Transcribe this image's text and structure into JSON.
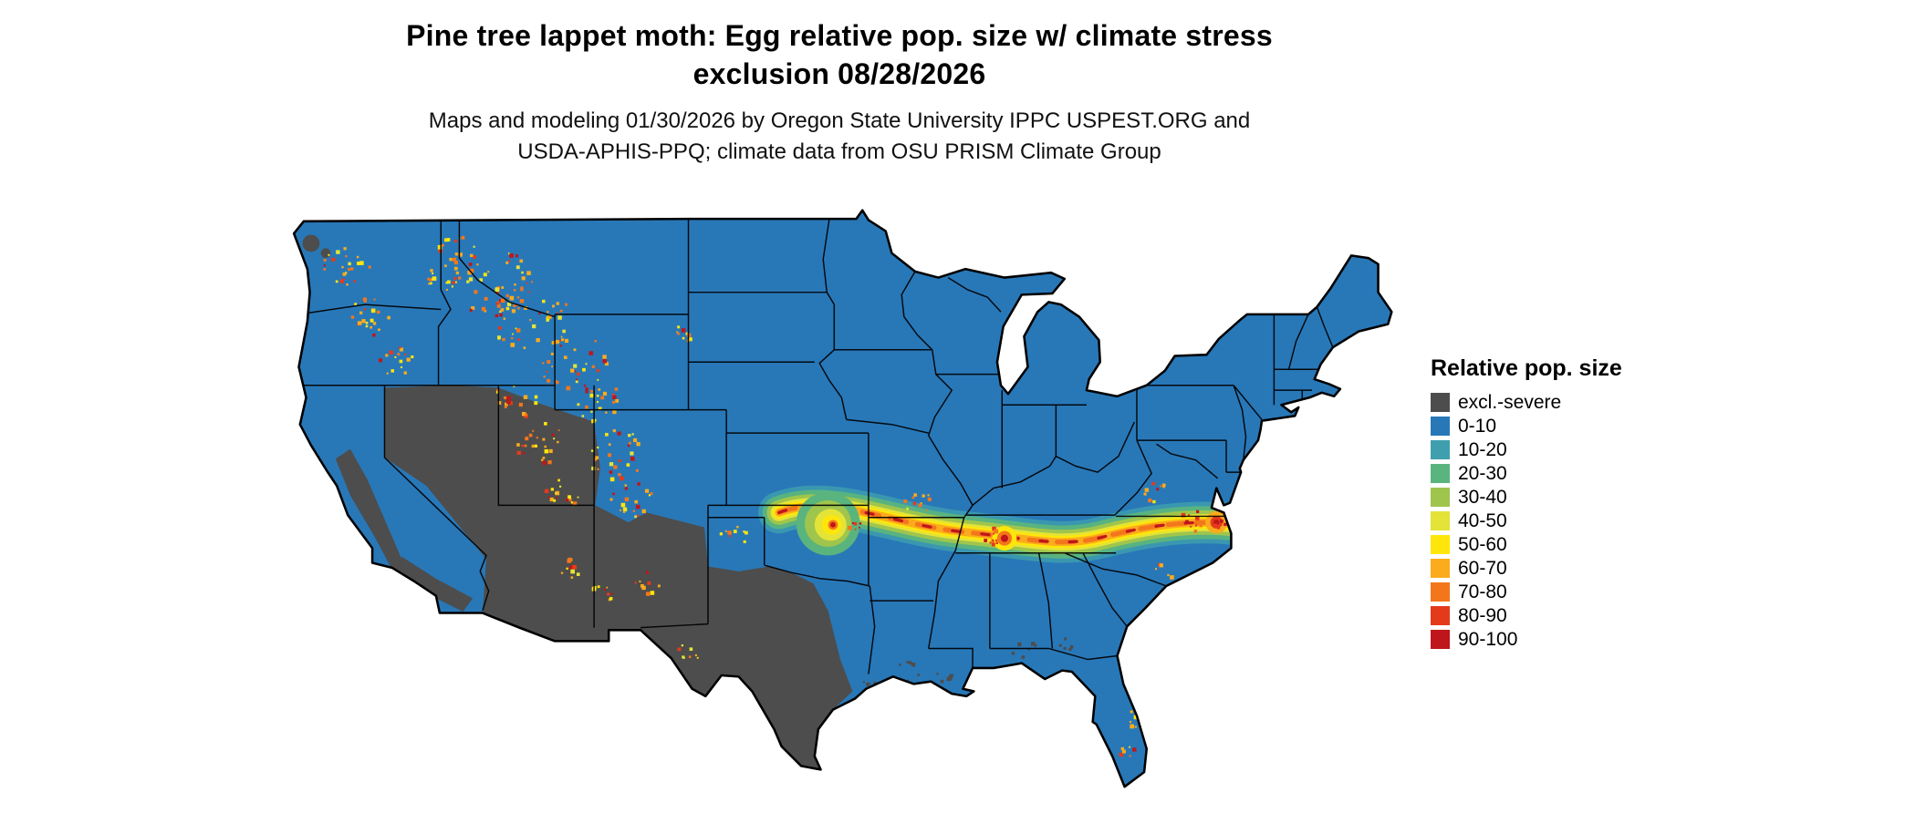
{
  "header": {
    "title_line1": "Pine tree lappet moth: Egg relative pop. size w/ climate stress",
    "title_line2": "exclusion 08/28/2026",
    "subtitle_line1": "Maps and modeling 01/30/2026 by Oregon State University IPPC USPEST.ORG and",
    "subtitle_line2": "USDA-APHIS-PPQ; climate data from OSU PRISM Climate Group"
  },
  "legend": {
    "title": "Relative pop. size",
    "items": [
      {
        "label": "excl.-severe",
        "color": "#4d4d4d"
      },
      {
        "label": "0-10",
        "color": "#2878b8"
      },
      {
        "label": "10-20",
        "color": "#3f9fae"
      },
      {
        "label": "20-30",
        "color": "#5ab47e"
      },
      {
        "label": "30-40",
        "color": "#9fc54d"
      },
      {
        "label": "40-50",
        "color": "#e4e337"
      },
      {
        "label": "50-60",
        "color": "#ffe60a"
      },
      {
        "label": "60-70",
        "color": "#fbab1c"
      },
      {
        "label": "70-80",
        "color": "#f4761b"
      },
      {
        "label": "80-90",
        "color": "#e43a1c"
      },
      {
        "label": "90-100",
        "color": "#bf161b"
      }
    ]
  }
}
